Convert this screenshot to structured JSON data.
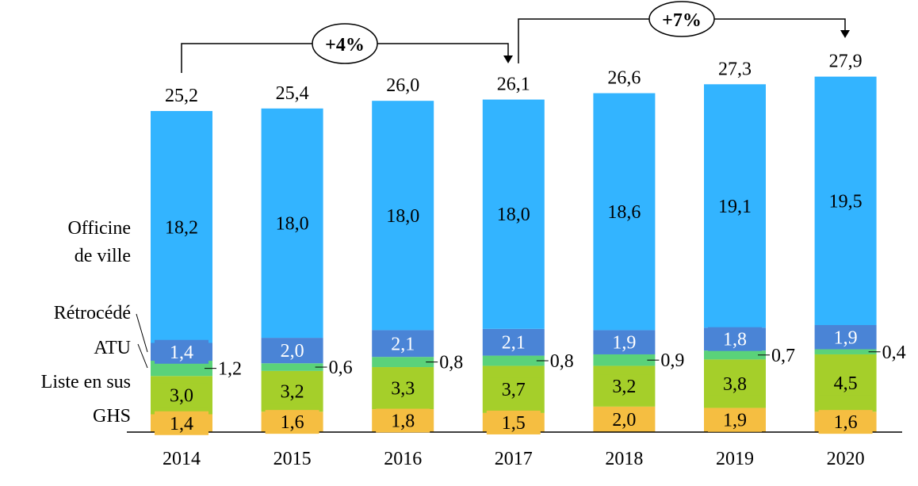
{
  "chart_data": {
    "type": "bar",
    "stacked": true,
    "categories": [
      "2014",
      "2015",
      "2016",
      "2017",
      "2018",
      "2019",
      "2020"
    ],
    "series": [
      {
        "name": "GHS",
        "color": "#F5BE41",
        "values": [
          1.4,
          1.6,
          1.8,
          1.5,
          2.0,
          1.9,
          1.6
        ],
        "labels": [
          "1,4",
          "1,6",
          "1,8",
          "1,5",
          "2,0",
          "1,9",
          "1,6"
        ]
      },
      {
        "name": "Liste en sus",
        "color": "#A5CF2A",
        "values": [
          3.0,
          3.2,
          3.3,
          3.7,
          3.2,
          3.8,
          4.5
        ],
        "labels": [
          "3,0",
          "3,2",
          "3,3",
          "3,7",
          "3,2",
          "3,8",
          "4,5"
        ]
      },
      {
        "name": "ATU",
        "color": "#5AD27A",
        "values": [
          1.2,
          0.6,
          0.8,
          0.8,
          0.9,
          0.7,
          0.4
        ],
        "labels": [
          "1,2",
          "0,6",
          "0,8",
          "0,8",
          "0,9",
          "0,7",
          "0,4"
        ]
      },
      {
        "name": "Rétrocédé",
        "color": "#4A84D6",
        "values": [
          1.4,
          2.0,
          2.1,
          2.1,
          1.9,
          1.8,
          1.9
        ],
        "labels": [
          "1,4",
          "2,0",
          "2,1",
          "2,1",
          "1,9",
          "1,8",
          "1,9"
        ]
      },
      {
        "name": "Officine de ville",
        "color": "#33B4FF",
        "values": [
          18.2,
          18.0,
          18.0,
          18.0,
          18.6,
          19.1,
          19.5
        ],
        "labels": [
          "18,2",
          "18,0",
          "18,0",
          "18,0",
          "18,6",
          "19,1",
          "19,5"
        ]
      }
    ],
    "totals": [
      "25,2",
      "25,4",
      "26,0",
      "26,1",
      "26,6",
      "27,3",
      "27,9"
    ],
    "legend": {
      "officine_line1": "Officine",
      "officine_line2": "de ville",
      "retrocede": "Rétrocédé",
      "atu": "ATU",
      "liste": "Liste en sus",
      "ghs": "GHS"
    },
    "annotations": [
      {
        "text": "+4%",
        "from": "2014",
        "to": "2017"
      },
      {
        "text": "+7%",
        "from": "2017",
        "to": "2020"
      }
    ],
    "title": "",
    "xlabel": "",
    "ylabel": "",
    "ylim": [
      0,
      34
    ],
    "grid": false
  }
}
